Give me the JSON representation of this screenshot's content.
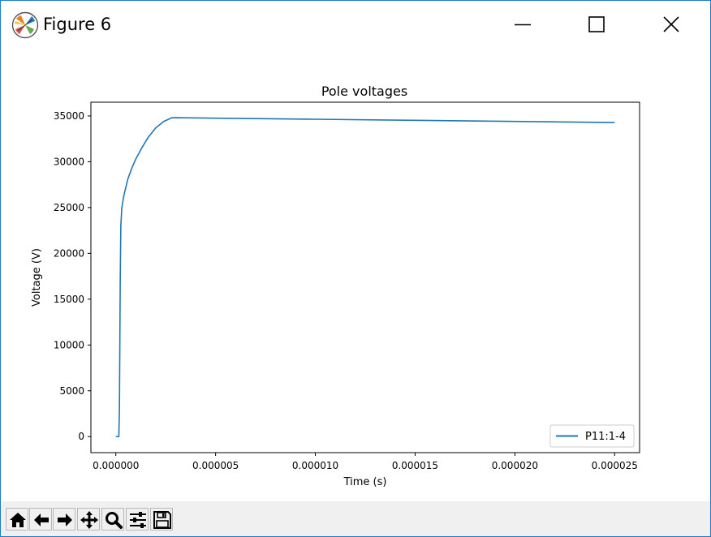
{
  "window": {
    "title": "Figure 6",
    "controls": {
      "minimize_icon": "minimize-icon",
      "maximize_icon": "maximize-icon",
      "close_icon": "close-icon"
    }
  },
  "toolbar": {
    "buttons": [
      {
        "name": "home-button",
        "icon": "home-icon"
      },
      {
        "name": "back-button",
        "icon": "arrow-left-icon"
      },
      {
        "name": "forward-button",
        "icon": "arrow-right-icon"
      },
      {
        "name": "pan-button",
        "icon": "move-icon"
      },
      {
        "name": "zoom-button",
        "icon": "magnifier-icon"
      },
      {
        "name": "subplots-button",
        "icon": "sliders-icon"
      },
      {
        "name": "save-button",
        "icon": "floppy-disk-icon"
      }
    ]
  },
  "chart_data": {
    "type": "line",
    "title": "Pole voltages",
    "xlabel": "Time (s)",
    "ylabel": "Voltage (V)",
    "xlim": [
      -1.25e-06,
      2.625e-05
    ],
    "ylim": [
      -1750,
      36500
    ],
    "xticks": [
      0.0,
      5e-06,
      1e-05,
      1.5e-05,
      2e-05,
      2.5e-05
    ],
    "xtick_labels": [
      "0.000000",
      "0.000005",
      "0.000010",
      "0.000015",
      "0.000020",
      "0.000025"
    ],
    "yticks": [
      0,
      5000,
      10000,
      15000,
      20000,
      25000,
      30000,
      35000
    ],
    "ytick_labels": [
      "0",
      "5000",
      "10000",
      "15000",
      "20000",
      "25000",
      "30000",
      "35000"
    ],
    "grid": false,
    "legend_position": "lower-right",
    "series": [
      {
        "name": "P11:1-4",
        "color": "#1f77b4",
        "x": [
          0.0,
          1.5e-07,
          1.8e-07,
          2e-07,
          2.2e-07,
          2.5e-07,
          3e-07,
          4e-07,
          5e-07,
          6e-07,
          8e-07,
          1e-06,
          1.3e-06,
          1.6e-06,
          2e-06,
          2.4e-06,
          2.8e-06,
          3e-06,
          5e-06,
          1e-05,
          1.5e-05,
          2e-05,
          2.5e-05
        ],
        "y": [
          0,
          0,
          3000,
          10000,
          17000,
          23000,
          25000,
          26300,
          27200,
          28100,
          29300,
          30300,
          31500,
          32600,
          33700,
          34400,
          34800,
          34810,
          34760,
          34640,
          34520,
          34400,
          34280
        ]
      }
    ]
  }
}
